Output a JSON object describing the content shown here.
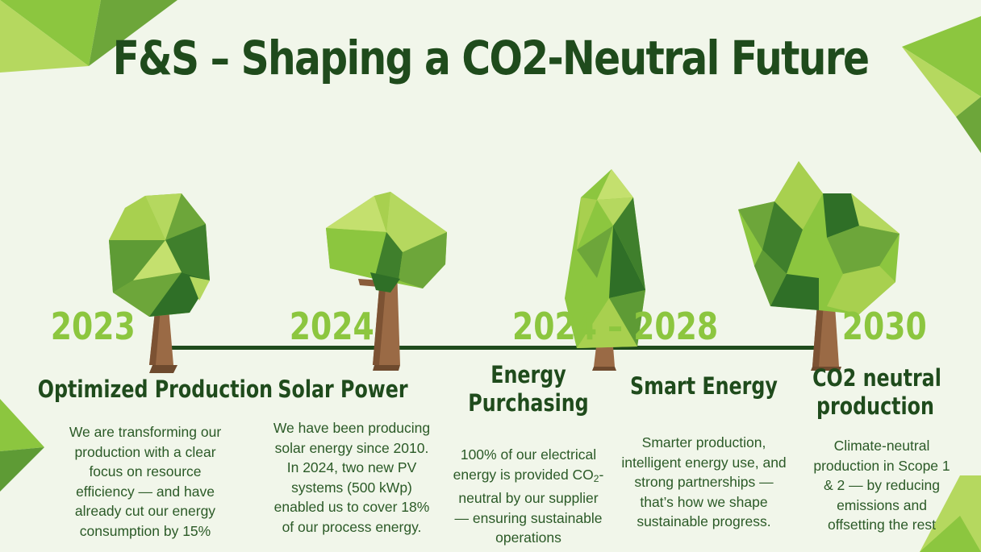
{
  "title": "F&S – Shaping a CO2-Neutral Future",
  "milestones": [
    {
      "year": "2023",
      "heading": "Optimized Production",
      "description": "We are transforming our production with a clear focus on resource efficiency — and have already cut our energy consumption by 15%"
    },
    {
      "year": "2024",
      "heading": "Solar Power",
      "description": "We have been producing solar energy since 2010. In 2024, two new PV systems (500 kWp) enabled us to cover 18% of our process energy."
    },
    {
      "year": "2024 – 2028",
      "heading_line1": "Energy",
      "heading_line2": "Purchasing",
      "desc_part1": "100% of our electrical energy is provided CO",
      "desc_sub": "2",
      "desc_part2": "-neutral by our supplier — ensuring sustainable operations"
    },
    {
      "heading": "Smart Energy",
      "description": "Smarter production, intelligent energy use, and strong partnerships — that’s how we shape sustainable progress."
    },
    {
      "year": "2030",
      "heading_line1": "CO2 neutral",
      "heading_line2": "production",
      "description": "Climate-neutral production in Scope 1 & 2 — by reducing emissions and offsetting the rest"
    }
  ],
  "colors": {
    "background": "#f1f6ea",
    "dark_green": "#1f4b1c",
    "light_green": "#8cc63f",
    "trunk": "#9a6a45"
  }
}
